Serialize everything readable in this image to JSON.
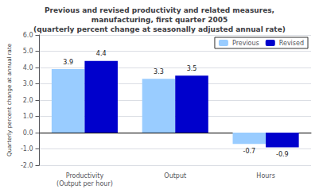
{
  "chart_data": {
    "type": "bar",
    "title": "Previous and revised productivity and related measures,\nmanufacturing, first quarter 2005\n(quarterly percent change at seasonally adjusted annual rate)",
    "ylabel": "Quarterly percent change at annual rate",
    "categories": [
      "Productivity\n(Output per hour)",
      "Output",
      "Hours"
    ],
    "series": [
      {
        "name": "Previous",
        "color": "#99ccff",
        "values": [
          3.9,
          3.3,
          -0.7
        ]
      },
      {
        "name": "Revised",
        "color": "#0000cc",
        "values": [
          4.4,
          3.5,
          -0.9
        ]
      }
    ],
    "ylim": [
      -2.0,
      6.0
    ],
    "yticks": [
      {
        "value": -2.0,
        "label": "-2.0"
      },
      {
        "value": -1.0,
        "label": "-1.0"
      },
      {
        "value": 0.0,
        "label": "0.0"
      },
      {
        "value": 1.0,
        "label": "1.0"
      },
      {
        "value": 2.0,
        "label": "2.0"
      },
      {
        "value": 3.0,
        "label": "3.0"
      },
      {
        "value": 4.0,
        "label": "4.0"
      },
      {
        "value": 5.0,
        "label": "5.0"
      },
      {
        "value": 6.0,
        "label": "6.0"
      }
    ],
    "grid": true,
    "legend": "upper right",
    "data_labels": true
  }
}
